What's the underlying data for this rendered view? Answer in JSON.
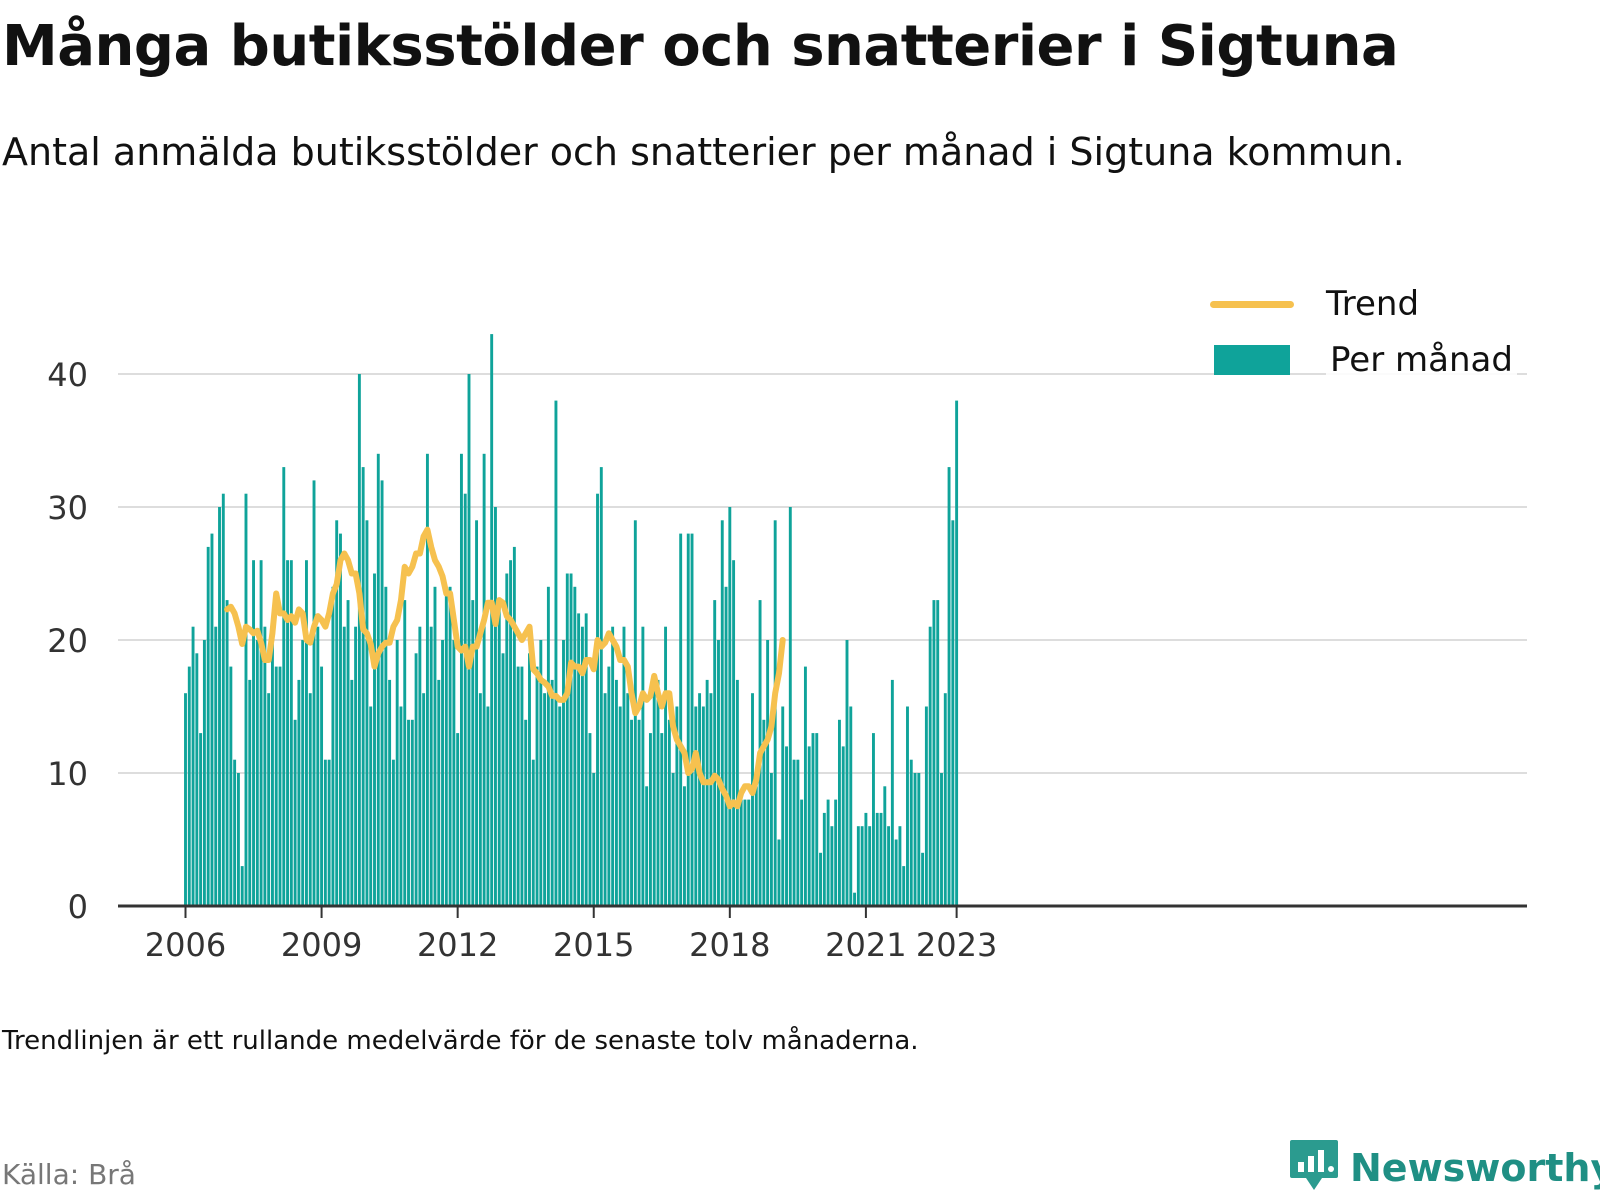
{
  "title": "Många butiksstölder och snatterier i Sigtuna",
  "subtitle": "Antal anmälda butiksstölder och snatterier per månad i Sigtuna kommun.",
  "footnote": "Trendlinjen är ett rullande medelvärde för de senaste tolv månaderna.",
  "source": "Källa: Brå",
  "brand": {
    "name": "Newsworthy",
    "icon": "newsworthy-logo-icon"
  },
  "colors": {
    "bars": "#0fa39a",
    "trend": "#f6c14f",
    "grid": "#dddddd",
    "axis": "#333333"
  },
  "legend": {
    "trend_label": "Trend",
    "bars_label": "Per månad",
    "placement": "top-right"
  },
  "chart_data": {
    "type": "bar",
    "x_start": "2006-01",
    "x_unit": "month",
    "ylim": [
      0,
      43
    ],
    "yticks": [
      0,
      10,
      20,
      30,
      40
    ],
    "xticks": [
      {
        "label": "2006",
        "month_index": 0
      },
      {
        "label": "2009",
        "month_index": 36
      },
      {
        "label": "2012",
        "month_index": 72
      },
      {
        "label": "2015",
        "month_index": 108
      },
      {
        "label": "2018",
        "month_index": 144
      },
      {
        "label": "2021",
        "month_index": 180
      },
      {
        "label": "2023",
        "month_index": 204
      }
    ],
    "grid": true,
    "series": [
      {
        "name": "Per månad",
        "type": "bar",
        "values": [
          16,
          18,
          21,
          19,
          13,
          20,
          27,
          28,
          21,
          30,
          31,
          23,
          18,
          11,
          10,
          3,
          31,
          17,
          26,
          20,
          26,
          21,
          16,
          20,
          18,
          18,
          33,
          26,
          26,
          14,
          17,
          20,
          26,
          16,
          32,
          21,
          18,
          11,
          11,
          24,
          29,
          28,
          21,
          23,
          17,
          21,
          40,
          33,
          29,
          15,
          25,
          34,
          32,
          24,
          17,
          11,
          20,
          15,
          23,
          14,
          14,
          19,
          21,
          16,
          34,
          21,
          24,
          17,
          20,
          24,
          24,
          20,
          13,
          34,
          31,
          40,
          23,
          29,
          16,
          34,
          15,
          43,
          30,
          23,
          19,
          25,
          26,
          27,
          18,
          18,
          14,
          19,
          11,
          18,
          20,
          16,
          24,
          17,
          38,
          15,
          20,
          25,
          25,
          24,
          22,
          21,
          22,
          13,
          10,
          31,
          33,
          16,
          18,
          21,
          17,
          15,
          21,
          16,
          14,
          29,
          14,
          21,
          9,
          13,
          17,
          17,
          13,
          21,
          14,
          10,
          15,
          28,
          9,
          28,
          28,
          15,
          16,
          15,
          17,
          16,
          23,
          20,
          29,
          24,
          30,
          26,
          17,
          8,
          8,
          8,
          16,
          9,
          23,
          14,
          20,
          10,
          29,
          5,
          15,
          12,
          30,
          11,
          11,
          8,
          18,
          12,
          13,
          13,
          4,
          7,
          8,
          6,
          8,
          14,
          12,
          20,
          15,
          1,
          6,
          6,
          7,
          6,
          13,
          7,
          7,
          9,
          6,
          17,
          5,
          6,
          3,
          15,
          11,
          10,
          10,
          4,
          15,
          21,
          23,
          23,
          10,
          16,
          33,
          29,
          38
        ]
      },
      {
        "name": "Trend",
        "type": "line",
        "start_month_index": 11,
        "values": [
          22.3,
          22.5,
          22.0,
          21.0,
          19.7,
          21.0,
          20.8,
          20.5,
          20.7,
          19.8,
          18.5,
          18.5,
          20.5,
          23.5,
          22.0,
          22.0,
          21.5,
          21.8,
          21.3,
          22.3,
          22.0,
          20.0,
          19.8,
          21.0,
          21.8,
          21.5,
          21.0,
          22.0,
          23.5,
          24.2,
          26.0,
          26.5,
          26.0,
          25.0,
          25.0,
          23.5,
          20.8,
          20.5,
          19.7,
          18.0,
          19.0,
          19.5,
          19.8,
          19.8,
          21.0,
          21.5,
          23.0,
          25.5,
          25.0,
          25.5,
          26.5,
          26.5,
          27.8,
          28.3,
          27.0,
          26.0,
          25.5,
          24.8,
          23.5,
          23.5,
          21.5,
          19.5,
          19.2,
          19.5,
          18.0,
          19.5,
          19.5,
          20.5,
          21.5,
          22.8,
          22.8,
          21.2,
          23.0,
          22.8,
          21.8,
          21.5,
          21.0,
          20.5,
          20.0,
          20.5,
          21.0,
          17.8,
          17.5,
          17.0,
          16.8,
          16.5,
          15.8,
          15.8,
          15.5,
          15.5,
          16.0,
          18.3,
          18.0,
          18.0,
          17.5,
          18.5,
          18.5,
          17.8,
          20.0,
          19.5,
          19.8,
          20.5,
          20.0,
          19.5,
          18.5,
          18.5,
          18.0,
          16.0,
          14.5,
          15.0,
          16.0,
          15.5,
          15.8,
          17.3,
          16.0,
          15.0,
          16.0,
          16.0,
          13.5,
          12.5,
          12.0,
          11.5,
          10.0,
          10.3,
          11.5,
          10.0,
          9.3,
          9.3,
          9.3,
          9.8,
          9.5,
          8.8,
          8.3,
          7.5,
          7.8,
          7.5,
          8.5,
          9.0,
          9.0,
          8.5,
          9.5,
          11.5,
          12.0,
          12.5,
          13.5,
          16.0,
          17.5,
          20.0
        ]
      }
    ]
  }
}
